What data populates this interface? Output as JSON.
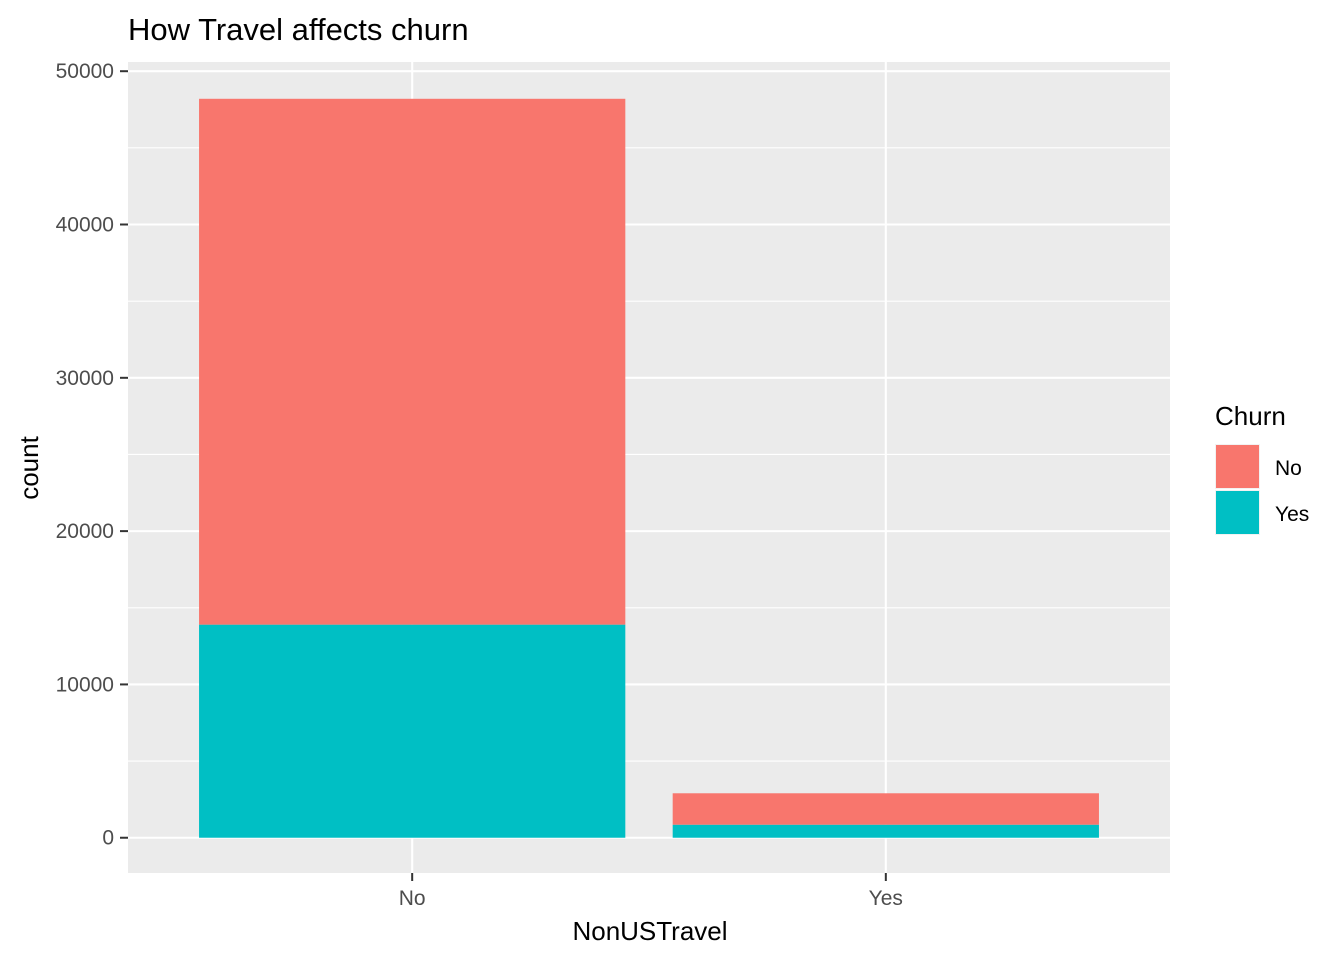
{
  "chart_data": {
    "type": "bar",
    "stacked": true,
    "title": "How Travel affects churn",
    "xlabel": "NonUSTravel",
    "ylabel": "count",
    "categories": [
      "No",
      "Yes"
    ],
    "series": [
      {
        "name": "No",
        "values": [
          34300,
          2050
        ],
        "color": "#F8766D"
      },
      {
        "name": "Yes",
        "values": [
          13900,
          850
        ],
        "color": "#00BFC4"
      }
    ],
    "ylim": [
      -2300,
      50600
    ],
    "yticks": [
      0,
      10000,
      20000,
      30000,
      40000,
      50000
    ],
    "grid": true,
    "legend": {
      "title": "Churn",
      "position": "right",
      "entries": [
        "No",
        "Yes"
      ]
    },
    "panel_background": "#EBEBEB",
    "grid_color": "#FFFFFF"
  }
}
